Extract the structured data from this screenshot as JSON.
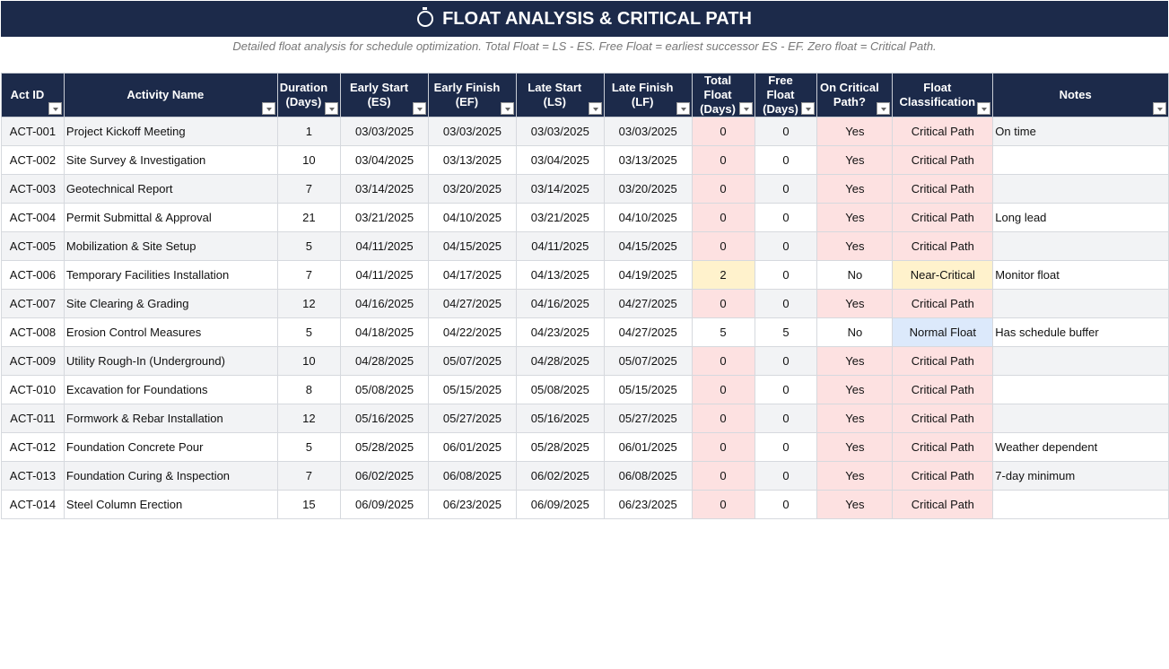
{
  "title": "FLOAT ANALYSIS & CRITICAL PATH",
  "subtitle": "Detailed float analysis for schedule optimization. Total Float = LS - ES. Free Float = earliest successor ES - EF. Zero float = Critical Path.",
  "colors": {
    "header": "#1c2a4a",
    "critical": "#fde1e1",
    "near_critical": "#fff2cc",
    "normal": "#dce9fb"
  },
  "columns": [
    "Act ID",
    "Activity Name",
    "Duration (Days)",
    "Early Start (ES)",
    "Early Finish (EF)",
    "Late Start (LS)",
    "Late Finish (LF)",
    "Total Float (Days)",
    "Free Float (Days)",
    "On Critical Path?",
    "Float Classification",
    "Notes"
  ],
  "rows": [
    [
      "ACT-001",
      "Project Kickoff Meeting",
      "1",
      "03/03/2025",
      "03/03/2025",
      "03/03/2025",
      "03/03/2025",
      "0",
      "0",
      "Yes",
      "Critical Path",
      "On time"
    ],
    [
      "ACT-002",
      "Site Survey & Investigation",
      "10",
      "03/04/2025",
      "03/13/2025",
      "03/04/2025",
      "03/13/2025",
      "0",
      "0",
      "Yes",
      "Critical Path",
      ""
    ],
    [
      "ACT-003",
      "Geotechnical Report",
      "7",
      "03/14/2025",
      "03/20/2025",
      "03/14/2025",
      "03/20/2025",
      "0",
      "0",
      "Yes",
      "Critical Path",
      ""
    ],
    [
      "ACT-004",
      "Permit Submittal & Approval",
      "21",
      "03/21/2025",
      "04/10/2025",
      "03/21/2025",
      "04/10/2025",
      "0",
      "0",
      "Yes",
      "Critical Path",
      "Long lead"
    ],
    [
      "ACT-005",
      "Mobilization & Site Setup",
      "5",
      "04/11/2025",
      "04/15/2025",
      "04/11/2025",
      "04/15/2025",
      "0",
      "0",
      "Yes",
      "Critical Path",
      ""
    ],
    [
      "ACT-006",
      "Temporary Facilities Installation",
      "7",
      "04/11/2025",
      "04/17/2025",
      "04/13/2025",
      "04/19/2025",
      "2",
      "0",
      "No",
      "Near-Critical",
      "Monitor float"
    ],
    [
      "ACT-007",
      "Site Clearing & Grading",
      "12",
      "04/16/2025",
      "04/27/2025",
      "04/16/2025",
      "04/27/2025",
      "0",
      "0",
      "Yes",
      "Critical Path",
      ""
    ],
    [
      "ACT-008",
      "Erosion Control Measures",
      "5",
      "04/18/2025",
      "04/22/2025",
      "04/23/2025",
      "04/27/2025",
      "5",
      "5",
      "No",
      "Normal Float",
      "Has schedule buffer"
    ],
    [
      "ACT-009",
      "Utility Rough-In (Underground)",
      "10",
      "04/28/2025",
      "05/07/2025",
      "04/28/2025",
      "05/07/2025",
      "0",
      "0",
      "Yes",
      "Critical Path",
      ""
    ],
    [
      "ACT-010",
      "Excavation for Foundations",
      "8",
      "05/08/2025",
      "05/15/2025",
      "05/08/2025",
      "05/15/2025",
      "0",
      "0",
      "Yes",
      "Critical Path",
      ""
    ],
    [
      "ACT-011",
      "Formwork & Rebar Installation",
      "12",
      "05/16/2025",
      "05/27/2025",
      "05/16/2025",
      "05/27/2025",
      "0",
      "0",
      "Yes",
      "Critical Path",
      ""
    ],
    [
      "ACT-012",
      "Foundation Concrete Pour",
      "5",
      "05/28/2025",
      "06/01/2025",
      "05/28/2025",
      "06/01/2025",
      "0",
      "0",
      "Yes",
      "Critical Path",
      "Weather dependent"
    ],
    [
      "ACT-013",
      "Foundation Curing & Inspection",
      "7",
      "06/02/2025",
      "06/08/2025",
      "06/02/2025",
      "06/08/2025",
      "0",
      "0",
      "Yes",
      "Critical Path",
      "7-day minimum"
    ],
    [
      "ACT-014",
      "Steel Column Erection",
      "15",
      "06/09/2025",
      "06/23/2025",
      "06/09/2025",
      "06/23/2025",
      "0",
      "0",
      "Yes",
      "Critical Path",
      ""
    ]
  ]
}
